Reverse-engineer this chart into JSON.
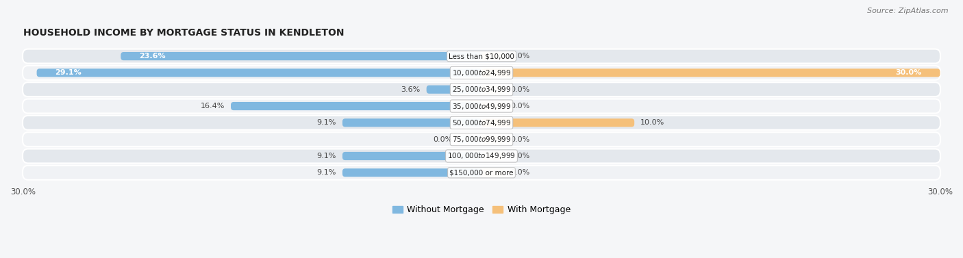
{
  "title": "HOUSEHOLD INCOME BY MORTGAGE STATUS IN KENDLETON",
  "source": "Source: ZipAtlas.com",
  "categories": [
    "Less than $10,000",
    "$10,000 to $24,999",
    "$25,000 to $34,999",
    "$35,000 to $49,999",
    "$50,000 to $74,999",
    "$75,000 to $99,999",
    "$100,000 to $149,999",
    "$150,000 or more"
  ],
  "without_mortgage": [
    23.6,
    29.1,
    3.6,
    16.4,
    9.1,
    0.0,
    9.1,
    9.1
  ],
  "with_mortgage": [
    0.0,
    30.0,
    0.0,
    0.0,
    10.0,
    0.0,
    0.0,
    0.0
  ],
  "color_without": "#80b8e0",
  "color_with": "#f5c07a",
  "color_without_zero": "#c5ddf0",
  "color_with_zero": "#fae0b8",
  "xlim": 30.0,
  "title_fontsize": 10,
  "source_fontsize": 8,
  "label_fontsize": 8,
  "category_fontsize": 7.5,
  "legend_fontsize": 9,
  "axis_label_fontsize": 8.5,
  "row_bg_light": "#f0f2f5",
  "row_bg_dark": "#e4e8ed",
  "fig_bg": "#f5f6f8"
}
